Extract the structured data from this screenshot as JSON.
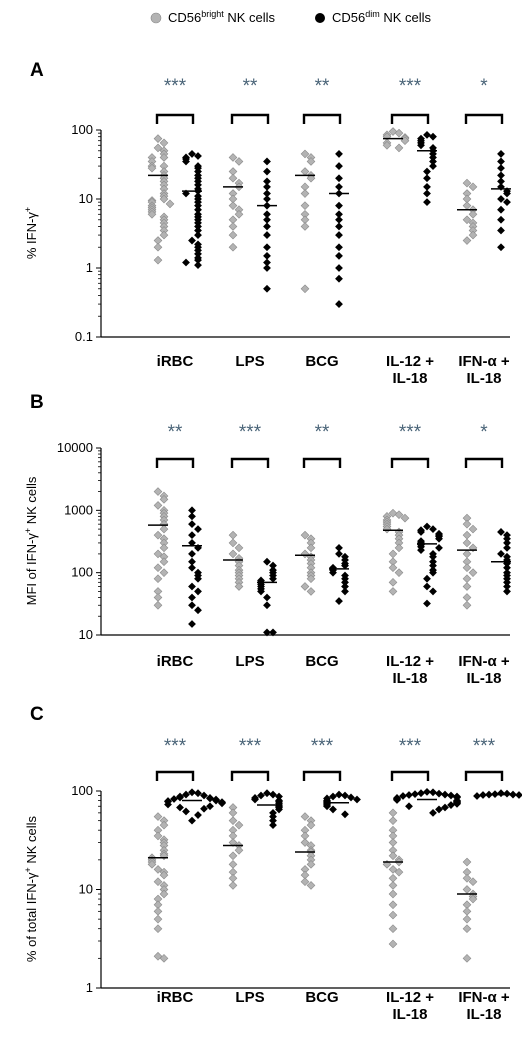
{
  "legend": {
    "bright": {
      "pre": "CD56",
      "sup": "bright",
      "post": " NK cells",
      "color": "#b3b3b3"
    },
    "dim": {
      "pre": "CD56",
      "sup": "dim",
      "post": " NK cells",
      "color": "#000000"
    }
  },
  "colors": {
    "bright": "#b3b3b3",
    "dim": "#000000",
    "significance": "#4a6478"
  },
  "chart_data": [
    {
      "panel": "A",
      "type": "scatter",
      "scale": "log",
      "ylabel": {
        "pre": "% IFN-γ",
        "sup": "+",
        "post": ""
      },
      "ylim": [
        0.1,
        100
      ],
      "yticks": [
        {
          "v": 0.1,
          "t": "0.1"
        },
        {
          "v": 1,
          "t": "1"
        },
        {
          "v": 10,
          "t": "10"
        },
        {
          "v": 100,
          "t": "100"
        }
      ],
      "categories": [
        [
          "iRBC"
        ],
        [
          "LPS"
        ],
        [
          "BCG"
        ],
        [
          "IL-12 +",
          "IL-18"
        ],
        [
          "IFN-α +",
          "IL-18"
        ]
      ],
      "significance": [
        "***",
        "**",
        "**",
        "***",
        "*"
      ],
      "series": [
        {
          "name": "CD56bright NK cells",
          "key": "bright",
          "medians": [
            22,
            15,
            22,
            75,
            7
          ],
          "values": [
            [
              75,
              65,
              55,
              50,
              45,
              40,
              40,
              35,
              30,
              30,
              28,
              25,
              22,
              20,
              18,
              16,
              14,
              12,
              11,
              10,
              9.5,
              9,
              8.5,
              8,
              7.5,
              7,
              6.5,
              6,
              5.5,
              5,
              4.5,
              4,
              3.5,
              3,
              2.5,
              2,
              1.3
            ],
            [
              40,
              35,
              25,
              20,
              17,
              15,
              12,
              10,
              8,
              7,
              6,
              5,
              4,
              3,
              2
            ],
            [
              45,
              40,
              35,
              25,
              22,
              20,
              15,
              12,
              8,
              6,
              5,
              4,
              0.5
            ],
            [
              95,
              90,
              85,
              80,
              78,
              75,
              70,
              65,
              60,
              55
            ],
            [
              17,
              15,
              12,
              10,
              8,
              7,
              6,
              5,
              4.5,
              4,
              3.5,
              3,
              2.5
            ]
          ]
        },
        {
          "name": "CD56dim NK cells",
          "key": "dim",
          "medians": [
            13,
            8,
            12,
            50,
            14
          ],
          "values": [
            [
              45,
              42,
              40,
              38,
              35,
              30,
              28,
              25,
              22,
              20,
              18,
              16,
              14,
              13,
              12,
              11,
              10,
              9,
              8,
              7,
              6,
              5.5,
              5,
              4.5,
              4,
              3.5,
              3,
              2.5,
              2.2,
              2,
              1.8,
              1.6,
              1.4,
              1.3,
              1.2,
              1.1
            ],
            [
              35,
              25,
              18,
              15,
              12,
              10,
              8,
              6,
              5,
              4,
              3,
              2,
              1.5,
              1.2,
              1,
              0.5
            ],
            [
              45,
              30,
              20,
              15,
              12,
              8,
              6,
              5,
              4,
              3,
              2,
              1.5,
              1,
              0.7,
              0.3
            ],
            [
              85,
              80,
              75,
              70,
              65,
              60,
              55,
              50,
              45,
              40,
              35,
              30,
              25,
              20,
              15,
              12,
              9
            ],
            [
              45,
              35,
              28,
              22,
              18,
              15,
              13,
              12,
              10,
              9,
              7,
              5,
              3.5,
              2
            ]
          ]
        }
      ]
    },
    {
      "panel": "B",
      "type": "scatter",
      "scale": "log",
      "ylabel": {
        "pre": "MFI of IFN-γ",
        "sup": "+",
        "post": " NK cells"
      },
      "ylim": [
        10,
        10000
      ],
      "yticks": [
        {
          "v": 10,
          "t": "10"
        },
        {
          "v": 100,
          "t": "100"
        },
        {
          "v": 1000,
          "t": "1000"
        },
        {
          "v": 10000,
          "t": "10000"
        }
      ],
      "categories": [
        [
          "iRBC"
        ],
        [
          "LPS"
        ],
        [
          "BCG"
        ],
        [
          "IL-12 +",
          "IL-18"
        ],
        [
          "IFN-α +",
          "IL-18"
        ]
      ],
      "significance": [
        "**",
        "***",
        "**",
        "***",
        "*"
      ],
      "series": [
        {
          "name": "CD56bright NK cells",
          "key": "bright",
          "medians": [
            580,
            160,
            190,
            480,
            230
          ],
          "values": [
            [
              2000,
              1700,
              1500,
              1200,
              1000,
              900,
              800,
              700,
              600,
              500,
              400,
              350,
              300,
              250,
              200,
              180,
              150,
              120,
              100,
              80,
              50,
              40,
              30
            ],
            [
              400,
              300,
              250,
              200,
              170,
              150,
              130,
              110,
              100,
              90,
              80,
              70,
              60
            ],
            [
              400,
              350,
              300,
              250,
              200,
              180,
              160,
              140,
              120,
              100,
              90,
              80,
              60,
              50
            ],
            [
              900,
              850,
              800,
              750,
              700,
              650,
              600,
              550,
              500,
              450,
              400,
              350,
              300,
              250,
              200,
              150,
              120,
              100,
              70,
              50
            ],
            [
              750,
              600,
              500,
              400,
              300,
              250,
              200,
              150,
              120,
              100,
              80,
              60,
              40,
              30
            ]
          ]
        },
        {
          "name": "CD56dim NK cells",
          "key": "dim",
          "medians": [
            270,
            70,
            115,
            290,
            150
          ],
          "values": [
            [
              1000,
              800,
              600,
              500,
              400,
              300,
              250,
              200,
              150,
              120,
              100,
              90,
              80,
              60,
              50,
              40,
              30,
              25,
              15
            ],
            [
              150,
              130,
              110,
              100,
              90,
              80,
              75,
              70,
              65,
              60,
              55,
              50,
              40,
              30,
              11,
              11
            ],
            [
              250,
              200,
              180,
              160,
              140,
              130,
              120,
              110,
              100,
              90,
              80,
              70,
              60,
              50,
              35
            ],
            [
              550,
              500,
              480,
              450,
              420,
              400,
              380,
              350,
              320,
              300,
              280,
              260,
              250,
              230,
              200,
              180,
              150,
              130,
              110,
              100,
              80,
              60,
              50,
              32
            ],
            [
              450,
              400,
              350,
              300,
              250,
              200,
              180,
              160,
              140,
              120,
              100,
              90,
              80,
              70,
              60,
              50
            ]
          ]
        }
      ]
    },
    {
      "panel": "C",
      "type": "scatter",
      "scale": "log",
      "ylabel": {
        "pre": "% of total IFN-γ",
        "sup": "+",
        "post": " NK cells"
      },
      "ylim": [
        1,
        100
      ],
      "yticks": [
        {
          "v": 1,
          "t": "1"
        },
        {
          "v": 10,
          "t": "10"
        },
        {
          "v": 100,
          "t": "100"
        }
      ],
      "categories": [
        [
          "iRBC"
        ],
        [
          "LPS"
        ],
        [
          "BCG"
        ],
        [
          "IL-12 +",
          "IL-18"
        ],
        [
          "IFN-α +",
          "IL-18"
        ]
      ],
      "significance": [
        "***",
        "***",
        "***",
        "***",
        "***"
      ],
      "series": [
        {
          "name": "CD56bright NK cells",
          "key": "bright",
          "medians": [
            21,
            28,
            24,
            19,
            9
          ],
          "values": [
            [
              55,
              50,
              45,
              40,
              35,
              32,
              30,
              28,
              25,
              23,
              22,
              21,
              20,
              19,
              18,
              16,
              15,
              14,
              12,
              11,
              10,
              9,
              8,
              7,
              6,
              5,
              4,
              2.1,
              2
            ],
            [
              68,
              60,
              50,
              45,
              40,
              35,
              30,
              28,
              25,
              22,
              18,
              15,
              13,
              11
            ],
            [
              55,
              50,
              45,
              40,
              35,
              30,
              28,
              25,
              24,
              22,
              20,
              18,
              16,
              14,
              12,
              11
            ],
            [
              60,
              50,
              40,
              35,
              30,
              25,
              22,
              20,
              19,
              18,
              16,
              15,
              13,
              11,
              9,
              7,
              5.5,
              4,
              2.8
            ],
            [
              19,
              15,
              13,
              12,
              10,
              9,
              8.5,
              8,
              7,
              6,
              5,
              4,
              2
            ]
          ]
        },
        {
          "name": "CD56dim NK cells",
          "key": "dim",
          "medians": [
            80,
            72,
            76,
            82,
            92
          ],
          "values": [
            [
              97,
              95,
              92,
              90,
              88,
              86,
              85,
              84,
              83,
              82,
              81,
              80,
              79,
              78,
              77,
              76,
              75,
              73,
              70,
              68,
              66,
              62,
              57,
              50
            ],
            [
              95,
              92,
              90,
              88,
              85,
              82,
              80,
              78,
              75,
              72,
              70,
              68,
              65,
              60,
              55,
              50,
              45
            ],
            [
              92,
              90,
              88,
              86,
              84,
              82,
              80,
              78,
              76,
              74,
              72,
              70,
              65,
              58
            ],
            [
              98,
              97,
              95,
              94,
              93,
              92,
              91,
              90,
              89,
              88,
              87,
              86,
              85,
              84,
              83,
              82,
              81,
              80,
              79,
              78,
              77,
              76,
              75,
              74,
              72,
              70,
              68,
              65,
              60
            ],
            [
              95,
              94,
              93,
              92,
              92,
              91,
              91,
              90,
              89
            ]
          ]
        }
      ]
    }
  ]
}
